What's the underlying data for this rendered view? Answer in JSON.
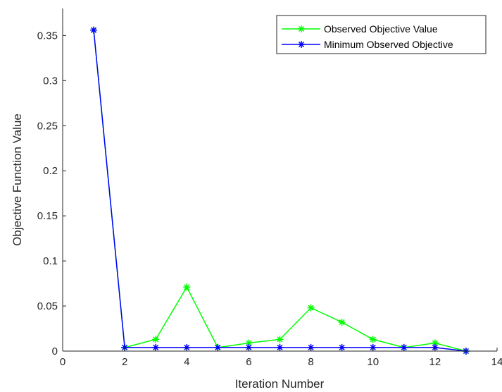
{
  "chart_data": {
    "type": "line",
    "title": "",
    "xlabel": "Iteration Number",
    "ylabel": "Objective Function Value",
    "xlim": [
      0,
      14
    ],
    "ylim": [
      0,
      0.38
    ],
    "xticks": [
      0,
      2,
      4,
      6,
      8,
      10,
      12,
      14
    ],
    "xtick_labels": [
      "0",
      "2",
      "4",
      "6",
      "8",
      "10",
      "12",
      "14"
    ],
    "yticks": [
      0,
      0.05,
      0.1,
      0.15,
      0.2,
      0.25,
      0.3,
      0.35
    ],
    "ytick_labels": [
      "0",
      "0.05",
      "0.1",
      "0.15",
      "0.2",
      "0.25",
      "0.3",
      "0.35"
    ],
    "grid": false,
    "legend_position": "top-right",
    "series": [
      {
        "name": "Observed Objective Value",
        "color": "#00ff00",
        "marker": "asterisk",
        "x": [
          1,
          2,
          3,
          4,
          5,
          6,
          7,
          8,
          9,
          10,
          11,
          12,
          13
        ],
        "y": [
          0.356,
          0.004,
          0.013,
          0.071,
          0.004,
          0.009,
          0.013,
          0.048,
          0.032,
          0.013,
          0.004,
          0.009,
          0.0
        ]
      },
      {
        "name": "Minimum Observed Objective",
        "color": "#0000ff",
        "marker": "asterisk",
        "x": [
          1,
          2,
          3,
          4,
          5,
          6,
          7,
          8,
          9,
          10,
          11,
          12,
          13
        ],
        "y": [
          0.356,
          0.004,
          0.004,
          0.004,
          0.004,
          0.004,
          0.004,
          0.004,
          0.004,
          0.004,
          0.004,
          0.004,
          0.0
        ]
      }
    ]
  }
}
